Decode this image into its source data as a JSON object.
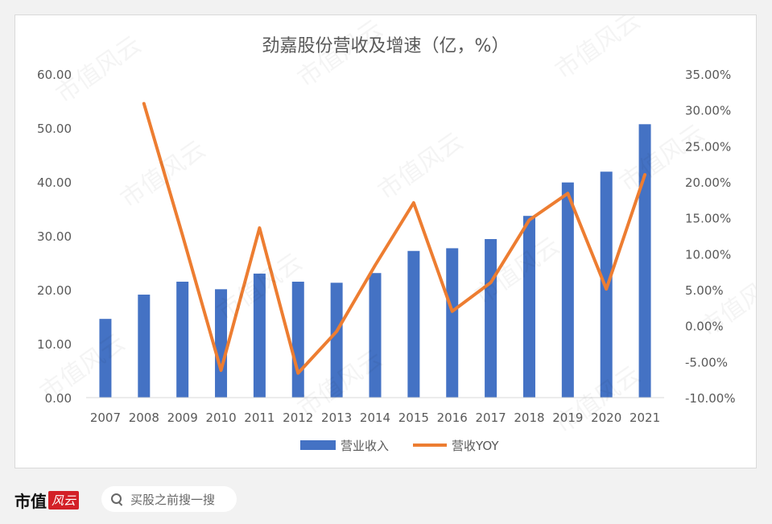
{
  "chart_data": {
    "type": "bar+line",
    "title": "劲嘉股份营收及增速（亿，%）",
    "categories": [
      "2007",
      "2008",
      "2009",
      "2010",
      "2011",
      "2012",
      "2013",
      "2014",
      "2015",
      "2016",
      "2017",
      "2018",
      "2019",
      "2020",
      "2021"
    ],
    "series": [
      {
        "name": "营业收入",
        "type": "bar",
        "axis": "left",
        "color": "#4472c4",
        "values": [
          14.6,
          19.1,
          21.5,
          20.1,
          23.0,
          21.5,
          21.3,
          23.1,
          27.2,
          27.7,
          29.4,
          33.7,
          39.9,
          41.9,
          50.7
        ]
      },
      {
        "name": "营收YOY",
        "type": "line",
        "axis": "right",
        "color": "#ed7d31",
        "values": [
          null,
          30.9,
          12.6,
          -6.2,
          13.6,
          -6.6,
          -0.8,
          8.4,
          17.1,
          2.0,
          6.0,
          14.7,
          18.4,
          5.1,
          21.0
        ]
      }
    ],
    "y_left": {
      "min": 0,
      "max": 60,
      "step": 10,
      "tick_labels": [
        "0.00",
        "10.00",
        "20.00",
        "30.00",
        "40.00",
        "50.00",
        "60.00"
      ]
    },
    "y_right": {
      "min": -10,
      "max": 35,
      "step": 5,
      "tick_labels": [
        "-10.00%",
        "-5.00%",
        "0.00%",
        "5.00%",
        "10.00%",
        "15.00%",
        "20.00%",
        "25.00%",
        "30.00%",
        "35.00%"
      ]
    },
    "legend_position": "bottom",
    "grid": false
  },
  "footer": {
    "logo_text": "市值",
    "logo_badge": "风云",
    "search_placeholder": "买股之前搜一搜"
  },
  "watermark": "市值风云"
}
